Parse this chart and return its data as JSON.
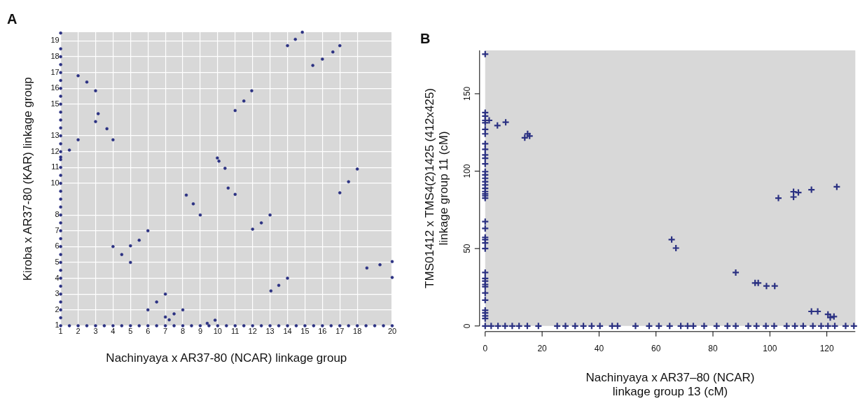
{
  "chart_data": [
    {
      "type": "scatter",
      "title": "A",
      "xlabel": "Nachinyaya x AR37-80 (NCAR) linkage group",
      "ylabel": "Kiroba x AR37-80 (KAR) linkage group",
      "xlim": [
        1,
        20
      ],
      "ylim": [
        1,
        19.55
      ],
      "grid": true,
      "marker": "circle",
      "xticks": [
        1,
        2,
        3,
        4,
        5,
        6,
        7,
        8,
        9,
        10,
        11,
        12,
        13,
        14,
        15,
        16,
        17,
        18,
        20
      ],
      "yticks": [
        1,
        2,
        3,
        4,
        5,
        6,
        7,
        8,
        10,
        11,
        12,
        13,
        15,
        16,
        17,
        18,
        19
      ],
      "series": [
        {
          "color": "#2b3182",
          "x": [
            1,
            1,
            1,
            1,
            1,
            1,
            1,
            1,
            1,
            1,
            1,
            1,
            1,
            1,
            1,
            1,
            1,
            1,
            1,
            1,
            1,
            1,
            1,
            1,
            1,
            1,
            1,
            1,
            1,
            1,
            1,
            1,
            1,
            1,
            1,
            1,
            1,
            1,
            1.5,
            2,
            2.5,
            3,
            3.5,
            4,
            4.5,
            5,
            5.5,
            6,
            6.5,
            7,
            7.5,
            8,
            8.5,
            9,
            9.5,
            10,
            10.5,
            11,
            11.5,
            12,
            12.5,
            13,
            13.5,
            14,
            14.5,
            15,
            15.5,
            16,
            16.5,
            17,
            17.5,
            18,
            18.5,
            19,
            19.5,
            20,
            1.5,
            2,
            2,
            2.5,
            3,
            3,
            3.15,
            3.65,
            4,
            14,
            14.45,
            14.85,
            15.45,
            16,
            16.6,
            17,
            11,
            11.5,
            11.95,
            9.98,
            10.07,
            10.42,
            10.6,
            11,
            8.2,
            8.6,
            9,
            12,
            12.5,
            13,
            17,
            17.5,
            18,
            5,
            5.5,
            6,
            4,
            4.5,
            5,
            6,
            6.5,
            7,
            7,
            7.5,
            8,
            7.22,
            9.4,
            9.85,
            13.05,
            13.5,
            14,
            18.55,
            19.3,
            20,
            20
          ],
          "values": [
            1,
            1.5,
            2,
            2.5,
            3,
            3.5,
            4,
            4.5,
            5,
            5.5,
            6,
            6.5,
            7,
            7.5,
            8,
            8.5,
            9,
            9.5,
            10,
            10.5,
            11,
            11.5,
            11.66,
            12,
            12.5,
            13,
            13.5,
            14,
            14.5,
            15,
            15.5,
            16,
            16.5,
            17,
            17.5,
            18,
            18.5,
            19.5,
            1,
            1,
            1,
            1,
            1,
            1,
            1,
            1,
            1,
            1,
            1,
            1,
            1,
            1,
            1,
            1,
            1,
            1,
            1,
            1,
            1,
            1,
            1,
            1,
            1,
            1,
            1,
            1,
            1,
            1,
            1,
            1,
            1,
            1,
            1,
            1,
            1,
            1,
            12.1,
            12.75,
            16.8,
            16.4,
            15.85,
            13.9,
            14.4,
            13.45,
            12.75,
            18.7,
            19.1,
            19.55,
            17.45,
            17.85,
            18.3,
            18.7,
            14.6,
            15.2,
            15.85,
            11.6,
            11.4,
            10.95,
            9.7,
            9.3,
            9.25,
            8.7,
            8,
            7.1,
            7.5,
            8,
            9.4,
            10.1,
            10.9,
            6.05,
            6.4,
            7,
            6,
            5.5,
            5,
            2,
            2.5,
            3,
            1.55,
            1.75,
            2,
            1.37,
            1.15,
            1.35,
            3.2,
            3.55,
            4,
            4.65,
            4.85,
            5.05,
            4.05
          ]
        }
      ]
    },
    {
      "type": "scatter",
      "title": "B",
      "xlabel": "Nachinyaya x AR37–80 (NCAR)\nlinkage group 13 (cM)",
      "ylabel": "TMS01412 x TMS4(2)1425 (412x425)\nlinkage group 11 (cM)",
      "xlim": [
        0,
        130
      ],
      "ylim": [
        0,
        178
      ],
      "xticks": [
        0,
        20,
        40,
        60,
        80,
        100,
        120
      ],
      "yticks": [
        0,
        50,
        100,
        150
      ],
      "grid": false,
      "marker": "cross",
      "series": [
        {
          "color": "#2b3182",
          "x": [
            0,
            0,
            0,
            0,
            0,
            0,
            0,
            0,
            0,
            0,
            0,
            0,
            0,
            0,
            0,
            0,
            0,
            0,
            0,
            0,
            0,
            0,
            0,
            0,
            0,
            0,
            0,
            0,
            0,
            0,
            0,
            0,
            0,
            0,
            0,
            0,
            0,
            0,
            0,
            0,
            1.4,
            4.3,
            7.2,
            13.9,
            14.9,
            15.6,
            103,
            108.3,
            108.3,
            110,
            114.6,
            123.5,
            65.5,
            67,
            88,
            94.8,
            95.9,
            98.8,
            101.7,
            114.6,
            116.8,
            120.4,
            121.2,
            122.5,
            2.1,
            4.5,
            7,
            9.5,
            11.9,
            14.8,
            18.7,
            25.3,
            28.2,
            31.6,
            34.5,
            37.4,
            40.3,
            44.6,
            46.5,
            52.8,
            57.6,
            61,
            64.8,
            68.7,
            71.1,
            73.1,
            76.9,
            81.3,
            85.1,
            88,
            92.4,
            95.3,
            98.6,
            101.5,
            105.9,
            108.8,
            111.7,
            115.1,
            118,
            120.4,
            122.8,
            126.6,
            129.5
          ],
          "values": [
            175.6,
            137.8,
            135.6,
            132.8,
            131.3,
            127,
            124.1,
            117.7,
            114.1,
            110.5,
            108.3,
            104.7,
            99.7,
            97.6,
            95.4,
            93.2,
            91.1,
            88.9,
            86.8,
            84.1,
            82.6,
            67.4,
            63,
            57.2,
            55.8,
            53.6,
            50,
            34.5,
            30.7,
            29,
            26.8,
            25.4,
            21.3,
            16.7,
            10.1,
            8.4,
            6.5,
            4.8,
            0,
            85.3,
            132.8,
            129.5,
            131.6,
            121.6,
            124.1,
            122.7,
            82.6,
            83.3,
            86.7,
            86.2,
            88,
            89.9,
            55.8,
            50.3,
            34.5,
            27.8,
            27.8,
            25.8,
            25.8,
            9.4,
            9.4,
            7.5,
            5.5,
            6.1,
            0,
            0,
            0,
            0,
            0,
            0,
            0,
            0,
            0,
            0,
            0,
            0,
            0,
            0,
            0,
            0,
            0,
            0,
            0,
            0,
            0,
            0,
            0,
            0,
            0,
            0,
            0,
            0,
            0,
            0,
            0,
            0,
            0,
            0,
            0,
            0,
            0,
            0,
            0
          ]
        }
      ]
    }
  ]
}
